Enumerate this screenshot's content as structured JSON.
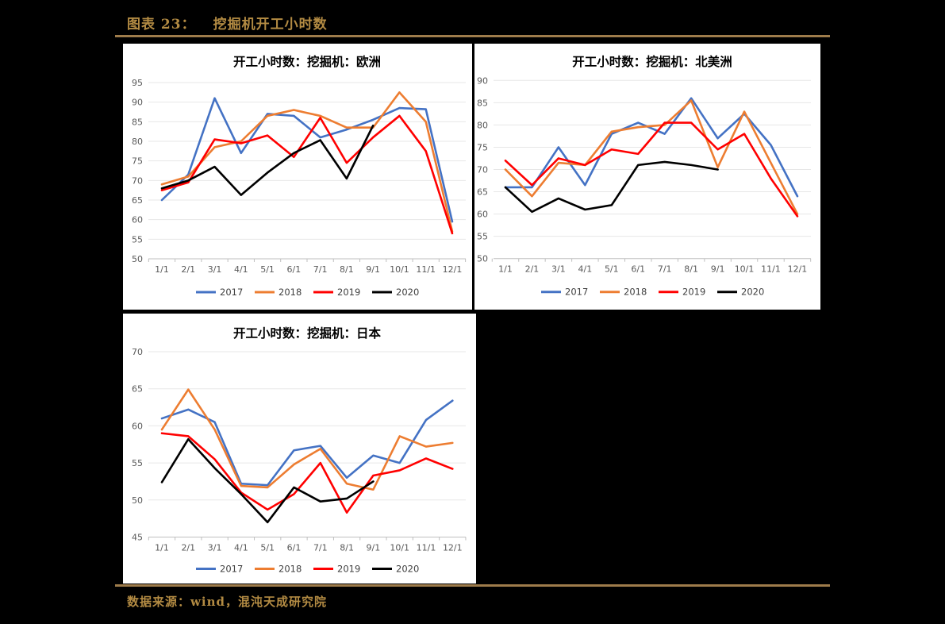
{
  "header": {
    "label": "图表 23：",
    "title": "挖掘机开工小时数"
  },
  "footer": {
    "source": "数据来源：wind，混沌天成研究院"
  },
  "colors": {
    "accent_gold_text": "#B38B43",
    "accent_gold_rule": "#9E7C4B",
    "page_background": "#000000",
    "panel_background": "#FFFFFF",
    "gridline": "#E7E7E7",
    "axis_line": "#BFBFBF",
    "tick_label": "#595959",
    "legend_label": "#404040",
    "series_2017": "#4472C4",
    "series_2018": "#ED7D31",
    "series_2019": "#FF0000",
    "series_2020": "#000000"
  },
  "legend": {
    "position": "bottom",
    "items": [
      {
        "label": "2017",
        "color": "#4472C4"
      },
      {
        "label": "2018",
        "color": "#ED7D31"
      },
      {
        "label": "2019",
        "color": "#FF0000"
      },
      {
        "label": "2020",
        "color": "#000000"
      }
    ]
  },
  "chart_data": [
    {
      "type": "line",
      "id": "europe",
      "title": "开工小时数：挖掘机：欧洲",
      "xlabel": "",
      "ylabel": "",
      "ylim": [
        50,
        95
      ],
      "ytick_step": 5,
      "grid": true,
      "legend_position": "bottom",
      "categories": [
        "1/1",
        "2/1",
        "3/1",
        "4/1",
        "5/1",
        "6/1",
        "7/1",
        "8/1",
        "9/1",
        "10/1",
        "11/1",
        "12/1"
      ],
      "series": [
        {
          "name": "2017",
          "color": "#4472C4",
          "values": [
            65,
            71.5,
            91,
            77,
            87,
            86.5,
            81,
            83,
            85.5,
            88.5,
            88.2,
            59.5
          ]
        },
        {
          "name": "2018",
          "color": "#ED7D31",
          "values": [
            69,
            71,
            78.5,
            80,
            86.5,
            88,
            86.5,
            83.5,
            83.5,
            92.5,
            85,
            57
          ]
        },
        {
          "name": "2019",
          "color": "#FF0000",
          "values": [
            67.5,
            69.5,
            80.5,
            79.5,
            81.5,
            76,
            86,
            74.5,
            81,
            86.5,
            77.5,
            56.5
          ]
        },
        {
          "name": "2020",
          "color": "#000000",
          "values": [
            68,
            70,
            73.5,
            66.3,
            72,
            77,
            80.3,
            70.5,
            84,
            null,
            null,
            null
          ]
        }
      ]
    },
    {
      "type": "line",
      "id": "north-america",
      "title": "开工小时数：挖掘机：北美洲",
      "xlabel": "",
      "ylabel": "",
      "ylim": [
        50,
        90
      ],
      "ytick_step": 5,
      "grid": true,
      "legend_position": "bottom",
      "categories": [
        "1/1",
        "2/1",
        "3/1",
        "4/1",
        "5/1",
        "6/1",
        "7/1",
        "8/1",
        "9/1",
        "10/1",
        "11/1",
        "12/1"
      ],
      "series": [
        {
          "name": "2017",
          "color": "#4472C4",
          "values": [
            66,
            66,
            75,
            66.5,
            78,
            80.5,
            78,
            86,
            77,
            82.5,
            75.5,
            64
          ]
        },
        {
          "name": "2018",
          "color": "#ED7D31",
          "values": [
            70,
            64,
            71.5,
            71,
            78.5,
            79.5,
            80,
            85.5,
            70.5,
            83,
            71.5,
            60
          ]
        },
        {
          "name": "2019",
          "color": "#FF0000",
          "values": [
            72,
            66.5,
            72.5,
            71,
            74.5,
            73.5,
            80.5,
            80.5,
            74.5,
            78,
            68,
            59.5
          ]
        },
        {
          "name": "2020",
          "color": "#000000",
          "values": [
            66,
            60.5,
            63.5,
            61,
            62,
            71,
            71.7,
            71,
            70,
            null,
            null,
            null
          ]
        }
      ]
    },
    {
      "type": "line",
      "id": "japan",
      "title": "开工小时数：挖掘机：日本",
      "xlabel": "",
      "ylabel": "",
      "ylim": [
        45,
        70
      ],
      "ytick_step": 5,
      "grid": true,
      "legend_position": "bottom",
      "categories": [
        "1/1",
        "2/1",
        "3/1",
        "4/1",
        "5/1",
        "6/1",
        "7/1",
        "8/1",
        "9/1",
        "10/1",
        "11/1",
        "12/1"
      ],
      "series": [
        {
          "name": "2017",
          "color": "#4472C4",
          "values": [
            61,
            62.2,
            60.5,
            52.2,
            52,
            56.7,
            57.3,
            53,
            56,
            55,
            60.8,
            63.4
          ]
        },
        {
          "name": "2018",
          "color": "#ED7D31",
          "values": [
            59.5,
            64.9,
            59.5,
            51.9,
            51.7,
            54.8,
            56.9,
            52.2,
            51.4,
            58.6,
            57.2,
            57.7
          ]
        },
        {
          "name": "2019",
          "color": "#FF0000",
          "values": [
            59,
            58.6,
            55.5,
            51,
            48.7,
            50.8,
            55,
            48.3,
            53.3,
            54,
            55.6,
            54.2
          ]
        },
        {
          "name": "2020",
          "color": "#000000",
          "values": [
            52.4,
            58.2,
            54.3,
            50.8,
            47,
            51.7,
            49.8,
            50.2,
            52.5,
            null,
            null,
            null
          ]
        }
      ]
    }
  ]
}
